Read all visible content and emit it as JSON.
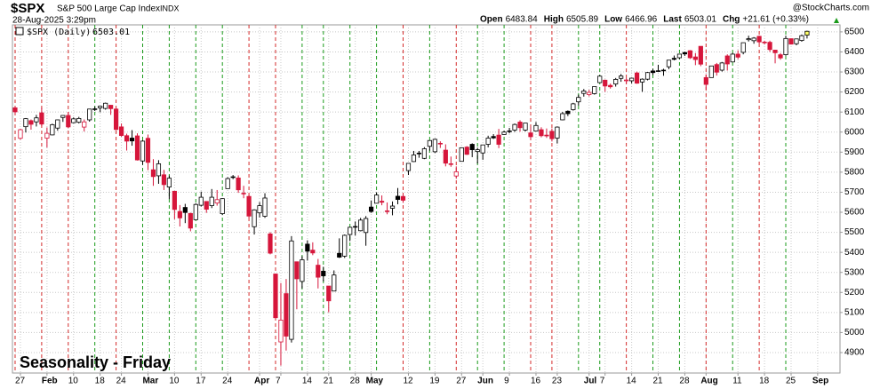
{
  "chart_data": {
    "type": "candlestick",
    "symbol": "$SPX",
    "name": "S&P 500 Large Cap Index",
    "exchange": "INDX",
    "timestamp": "28-Aug-2025 3:29pm",
    "quote": [
      {
        "label": "Open",
        "value": 6483.84
      },
      {
        "label": "High",
        "value": 6505.89
      },
      {
        "label": "Low",
        "value": 6466.96
      },
      {
        "label": "Last",
        "value": 6503.01
      },
      {
        "label": "Chg",
        "value": "+21.61 (+0.33%)"
      }
    ],
    "watermark": "@StockCharts.com",
    "legend": "$SPX (Daily)",
    "annotation": "Seasonality - Friday",
    "open": [
      6121,
      5969,
      6027,
      6057,
      6051,
      6096,
      5970,
      5986,
      6020,
      6073,
      6083,
      6047,
      6049,
      6025,
      6061,
      6116,
      6121,
      6118,
      6134,
      6115,
      6026,
      5982,
      5970,
      5981,
      5856,
      5969,
      5812,
      5782,
      5787,
      5726,
      5705,
      5604,
      5624,
      5594,
      5563,
      5635,
      5654,
      5633,
      5646,
      5593,
      5718,
      5776,
      5771,
      5695,
      5679,
      5528,
      5597,
      5580,
      5492,
      5292,
      4953,
      5194,
      4966,
      5353,
      5255,
      5441,
      5411,
      5336,
      5306,
      5232,
      5207,
      5395,
      5381,
      5489,
      5529,
      5508,
      5499,
      5626,
      5645,
      5655,
      5606,
      5620,
      5680,
      5679,
      5808,
      5853,
      5895,
      5869,
      5929,
      5902,
      5944,
      5910,
      5841,
      5781,
      5854,
      5925,
      5939,
      5903,
      5896,
      5939,
      5978,
      5985,
      5988,
      6004,
      6010,
      6050,
      6010,
      5996,
      6005,
      6012,
      5985,
      6004,
      5970,
      6061,
      6104,
      6112,
      6151,
      6193,
      6187,
      6192,
      6247,
      6259,
      6233,
      6240,
      6268,
      6256,
      6256,
      6295,
      6250,
      6264,
      6305,
      6304,
      6307,
      6326,
      6368,
      6371,
      6397,
      6406,
      6375,
      6428,
      6272,
      6272,
      6337,
      6309,
      6380,
      6350,
      6389,
      6398,
      6461,
      6456,
      6478,
      6446,
      6448,
      6409,
      6386,
      6386,
      6466,
      6441,
      6457,
      6483.84
    ],
    "high": [
      6128,
      6017,
      6070,
      6063,
      6086,
      6121,
      6023,
      6042,
      6062,
      6084,
      6101,
      6073,
      6076,
      6063,
      6116,
      6128,
      6130,
      6147,
      6135,
      6120,
      6043,
      5992,
      6010,
      5994,
      5959,
      5987,
      5865,
      5860,
      5812,
      5783,
      5705,
      5636,
      5642,
      5598,
      5645,
      5703,
      5654,
      5716,
      5711,
      5670,
      5775,
      5786,
      5784,
      5732,
      5685,
      5615,
      5651,
      5695,
      5501,
      5293,
      5247,
      5267,
      5481,
      5353,
      5381,
      5460,
      5450,
      5367,
      5328,
      5232,
      5310,
      5470,
      5489,
      5528,
      5554,
      5572,
      5581,
      5659,
      5700,
      5684,
      5649,
      5654,
      5721,
      5691,
      5845,
      5906,
      5906,
      5925,
      5959,
      5968,
      5954,
      5939,
      5878,
      5829,
      5924,
      5930,
      5944,
      5922,
      5937,
      5982,
      5990,
      6016,
      6007,
      6021,
      6043,
      6059,
      6045,
      6027,
      6050,
      6024,
      6018,
      6018,
      6028,
      6101,
      6108,
      6146,
      6187,
      6215,
      6211,
      6227,
      6284,
      6262,
      6242,
      6270,
      6290,
      6269,
      6272,
      6302,
      6268,
      6300,
      6316,
      6336,
      6316,
      6359,
      6382,
      6390,
      6401,
      6409,
      6394,
      6428,
      6288,
      6330,
      6345,
      6350,
      6388,
      6395,
      6408,
      6446,
      6481,
      6474,
      6481,
      6456,
      6456,
      6410,
      6394,
      6481,
      6466,
      6466,
      6487,
      6505.89
    ],
    "low": [
      6088,
      5962,
      5998,
      6012,
      6028,
      6031,
      5923,
      5984,
      6007,
      6051,
      6019,
      6044,
      6043,
      6003,
      6052,
      6105,
      6099,
      6112,
      6086,
      6009,
      5977,
      5908,
      5932,
      5858,
      5837,
      5810,
      5732,
      5742,
      5711,
      5666,
      5565,
      5529,
      5546,
      5505,
      5563,
      5629,
      5597,
      5621,
      5633,
      5586,
      5718,
      5765,
      5697,
      5670,
      5572,
      5489,
      5574,
      5572,
      5390,
      5070,
      4835,
      4910,
      4950,
      5116,
      5220,
      5359,
      5386,
      5220,
      5255,
      5101,
      5207,
      5372,
      5372,
      5456,
      5484,
      5505,
      5433,
      5597,
      5644,
      5635,
      5590,
      5585,
      5640,
      5647,
      5786,
      5851,
      5872,
      5865,
      5907,
      5896,
      5921,
      5829,
      5827,
      5767,
      5854,
      5886,
      5875,
      5843,
      5862,
      5924,
      5966,
      5920,
      5987,
      5994,
      6001,
      6002,
      6003,
      5964,
      6005,
      5974,
      5971,
      5953,
      5943,
      6059,
      6080,
      6107,
      6132,
      6177,
      6178,
      6187,
      6245,
      6201,
      6217,
      6227,
      6251,
      6242,
      6243,
      6241,
      6201,
      6258,
      6285,
      6304,
      6281,
      6314,
      6358,
      6364,
      6380,
      6365,
      6334,
      6329,
      6212,
      6272,
      6282,
      6302,
      6307,
      6350,
      6364,
      6388,
      6452,
      6441,
      6441,
      6437,
      6400,
      6343,
      6361,
      6381,
      6437,
      6433,
      6451,
      6466.96
    ],
    "close": [
      6101,
      6012,
      6067,
      6039,
      6071,
      6040,
      5994,
      6037,
      6061,
      6083,
      6026,
      6066,
      6068,
      6051,
      6115,
      6115,
      6129,
      6144,
      6117,
      6013,
      5983,
      5955,
      5956,
      5861,
      5955,
      5849,
      5778,
      5842,
      5738,
      5770,
      5614,
      5572,
      5599,
      5521,
      5639,
      5675,
      5615,
      5675,
      5663,
      5668,
      5768,
      5777,
      5712,
      5693,
      5581,
      5612,
      5633,
      5671,
      5396,
      5074,
      5062,
      4982,
      5457,
      5268,
      5363,
      5406,
      5397,
      5276,
      5283,
      5158,
      5287,
      5376,
      5485,
      5525,
      5529,
      5561,
      5569,
      5604,
      5686,
      5650,
      5607,
      5631,
      5664,
      5660,
      5844,
      5886,
      5892,
      5917,
      5958,
      5964,
      5941,
      5845,
      5842,
      5802,
      5922,
      5889,
      5912,
      5912,
      5936,
      5970,
      5971,
      5939,
      6000,
      6006,
      6038,
      6022,
      6045,
      5977,
      6033,
      5982,
      5981,
      5967,
      6025,
      6092,
      6092,
      6141,
      6173,
      6205,
      6198,
      6227,
      6279,
      6230,
      6226,
      6263,
      6280,
      6260,
      6269,
      6244,
      6264,
      6297,
      6297,
      6306,
      6309,
      6359,
      6363,
      6389,
      6390,
      6371,
      6362,
      6339,
      6238,
      6330,
      6299,
      6345,
      6340,
      6389,
      6374,
      6446,
      6466,
      6469,
      6450,
      6449,
      6412,
      6396,
      6370,
      6467,
      6439,
      6465,
      6481,
      6503.01
    ],
    "xlim": [
      -0.5,
      155.2
    ],
    "xticks": [
      {
        "value": 1,
        "label": "27"
      },
      {
        "value": 6,
        "label": "Feb"
      },
      {
        "value": 11,
        "label": "10"
      },
      {
        "value": 16,
        "label": "18"
      },
      {
        "value": 20,
        "label": "24"
      },
      {
        "value": 25,
        "label": "Mar"
      },
      {
        "value": 30,
        "label": "10"
      },
      {
        "value": 35,
        "label": "17"
      },
      {
        "value": 40,
        "label": "24"
      },
      {
        "value": 46,
        "label": "Apr"
      },
      {
        "value": 50,
        "label": "7"
      },
      {
        "value": 55,
        "label": "14"
      },
      {
        "value": 59,
        "label": "21"
      },
      {
        "value": 64,
        "label": "28"
      },
      {
        "value": 67,
        "label": "May"
      },
      {
        "value": 74,
        "label": "12"
      },
      {
        "value": 79,
        "label": "19"
      },
      {
        "value": 84,
        "label": "27"
      },
      {
        "value": 88,
        "label": "Jun"
      },
      {
        "value": 93,
        "label": "9"
      },
      {
        "value": 98,
        "label": "16"
      },
      {
        "value": 102,
        "label": "23"
      },
      {
        "value": 108,
        "label": "Jul"
      },
      {
        "value": 111,
        "label": "7"
      },
      {
        "value": 116,
        "label": "14"
      },
      {
        "value": 121,
        "label": "21"
      },
      {
        "value": 126,
        "label": "28"
      },
      {
        "value": 130,
        "label": "Aug"
      },
      {
        "value": 136,
        "label": "11"
      },
      {
        "value": 141,
        "label": "18"
      },
      {
        "value": 146,
        "label": "25"
      },
      {
        "value": 151,
        "label": "Sep"
      }
    ],
    "bold_xticks": [
      "Feb",
      "Mar",
      "Apr",
      "May",
      "Jun",
      "Jul",
      "Aug",
      "Sep"
    ],
    "ylim": [
      4798,
      6535
    ],
    "yticks": [
      4900,
      5000,
      5100,
      5200,
      5300,
      5400,
      5500,
      5600,
      5700,
      5800,
      5900,
      6000,
      6100,
      6200,
      6300,
      6400,
      6500
    ],
    "grid": true,
    "fridays": [
      0,
      5,
      10,
      15,
      19,
      24,
      29,
      34,
      39,
      44,
      49,
      54,
      58,
      63,
      68,
      73,
      78,
      83,
      87,
      92,
      97,
      101,
      106,
      110,
      115,
      120,
      125,
      130,
      135,
      140,
      145
    ],
    "friday_up_color": "#1a9a1a",
    "friday_down_color": "#d42a2a",
    "up_color": "#000000",
    "down_color": "#d6163b",
    "last_color": "#ffff66",
    "annotation_color": "#1a1ae6"
  }
}
